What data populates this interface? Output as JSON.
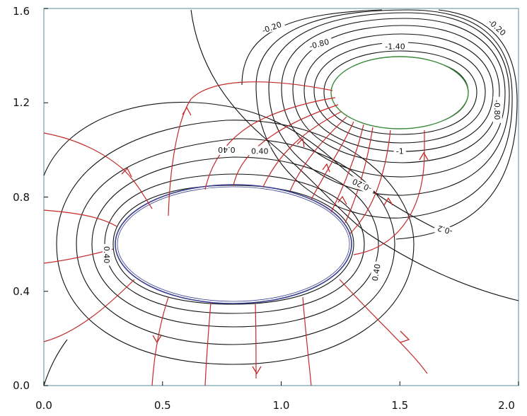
{
  "chart_data": {
    "type": "contour",
    "title": "",
    "xlabel": "",
    "ylabel": "",
    "xlim": [
      0.0,
      2.0
    ],
    "ylim": [
      0.0,
      1.6
    ],
    "x_ticks": [
      "0.0",
      "0.5",
      "1.0",
      "1.5",
      "2.0"
    ],
    "y_ticks": [
      "0.0",
      "0.4",
      "0.8",
      "1.2",
      "1.6"
    ],
    "x_tick_values": [
      0.0,
      0.5,
      1.0,
      1.5,
      2.0
    ],
    "y_tick_values": [
      0.0,
      0.4,
      0.8,
      1.2,
      1.6
    ],
    "grid": false,
    "legend": "none",
    "bodies": [
      {
        "shape": "ellipse",
        "center": [
          0.8,
          0.6
        ],
        "semi_axes": [
          0.5,
          0.25
        ],
        "outline_color": "#3a3f8f"
      },
      {
        "shape": "ellipse",
        "center": [
          1.5,
          1.26
        ],
        "semi_axes": [
          0.3,
          0.18
        ],
        "outline_color": "#3a8a3a"
      }
    ],
    "contour_labels": [
      {
        "text": "-0.20",
        "x": 0.96,
        "y": 1.52,
        "angle": -20
      },
      {
        "text": "-0.20",
        "x": 1.91,
        "y": 1.52,
        "angle": 42
      },
      {
        "text": "-0.80",
        "x": 1.16,
        "y": 1.45,
        "angle": -15
      },
      {
        "text": "-1.40",
        "x": 1.48,
        "y": 1.44,
        "angle": 0
      },
      {
        "text": "-0.80",
        "x": 1.91,
        "y": 1.17,
        "angle": 90
      },
      {
        "text": "-1",
        "x": 1.5,
        "y": 0.995,
        "angle": 0
      },
      {
        "text": "0.40",
        "x": 0.77,
        "y": 1.0,
        "angle": 180
      },
      {
        "text": "0.40",
        "x": 0.91,
        "y": 0.995,
        "angle": 0
      },
      {
        "text": "-0.20",
        "x": 1.34,
        "y": 0.85,
        "angle": 205
      },
      {
        "text": "-0.2",
        "x": 1.69,
        "y": 0.66,
        "angle": 195
      },
      {
        "text": "0.40",
        "x": 0.265,
        "y": 0.555,
        "angle": 90
      },
      {
        "text": "0.40",
        "x": 1.4,
        "y": 0.48,
        "angle": -80
      }
    ],
    "contour_levels": [
      -1.4,
      -1.0,
      -0.8,
      -0.2,
      0.2,
      0.4
    ],
    "colors": {
      "axes": "#8fb3bf",
      "contours": "#111111",
      "field_lines": "#c42a2a",
      "body1_outline": "#3a3f8f",
      "body2_outline": "#3a8a3a"
    }
  }
}
